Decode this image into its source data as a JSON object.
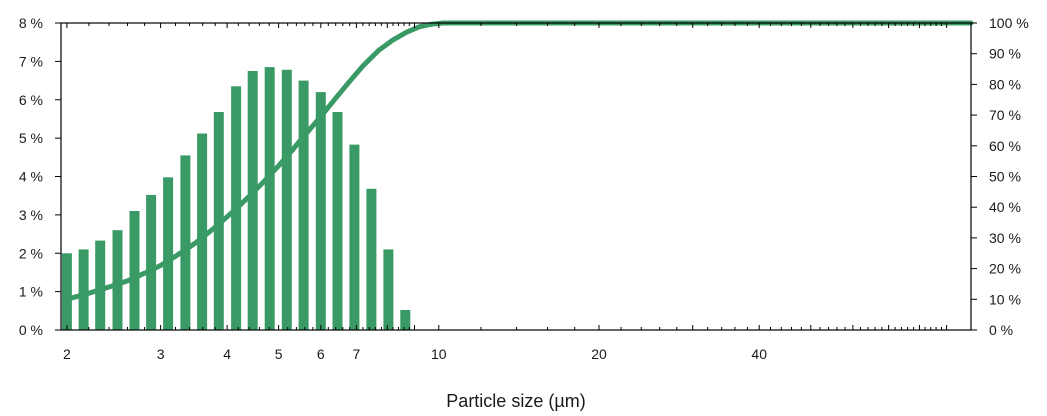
{
  "chart_data": {
    "type": "bar",
    "title": "",
    "xlabel": "Particle size (µm)",
    "ylabel_left": "",
    "ylabel_right": "",
    "x_scale": "log",
    "xlim": [
      1.95,
      100
    ],
    "y_left_lim": [
      0,
      8
    ],
    "y_right_lim": [
      0,
      100
    ],
    "x_tick_labels": [
      {
        "value": 2,
        "label": "2"
      },
      {
        "value": 3,
        "label": "3"
      },
      {
        "value": 4,
        "label": "4"
      },
      {
        "value": 5,
        "label": "5"
      },
      {
        "value": 6,
        "label": "6"
      },
      {
        "value": 7,
        "label": "7"
      },
      {
        "value": 10,
        "label": "10"
      },
      {
        "value": 20,
        "label": "20"
      },
      {
        "value": 40,
        "label": "40"
      }
    ],
    "y_left_ticks": [
      "0 %",
      "1 %",
      "2 %",
      "3 %",
      "4 %",
      "5 %",
      "6 %",
      "7 %",
      "8 %"
    ],
    "y_right_ticks": [
      "0 %",
      "10 %",
      "20 %",
      "30 %",
      "40 %",
      "50 %",
      "60 %",
      "70 %",
      "80 %",
      "90 %",
      "100 %"
    ],
    "grid": false,
    "color": "#3a9a66",
    "series": [
      {
        "type": "bar",
        "axis": "left",
        "x": [
          2.0,
          2.15,
          2.31,
          2.49,
          2.68,
          2.88,
          3.1,
          3.34,
          3.59,
          3.86,
          4.16,
          4.47,
          4.81,
          5.18,
          5.57,
          6.0,
          6.45,
          6.94,
          7.47,
          8.04,
          8.65,
          9.31,
          10.0
        ],
        "values": [
          2.0,
          2.1,
          2.33,
          2.6,
          3.1,
          3.52,
          3.98,
          4.55,
          5.12,
          5.68,
          6.35,
          6.75,
          6.85,
          6.78,
          6.5,
          6.2,
          5.68,
          4.83,
          3.68,
          2.1,
          0.52,
          0.0,
          0.0
        ]
      },
      {
        "type": "line",
        "axis": "right",
        "x": [
          2.0,
          2.2,
          2.4,
          2.6,
          2.8,
          3.0,
          3.2,
          3.5,
          3.8,
          4.1,
          4.4,
          4.7,
          5.0,
          5.3,
          5.6,
          6.0,
          6.4,
          6.8,
          7.2,
          7.7,
          8.2,
          8.7,
          9.2,
          9.7,
          10.2,
          10.5,
          11,
          15,
          30,
          60,
          100
        ],
        "values": [
          10,
          12,
          14,
          16,
          18.5,
          21,
          24,
          28.5,
          33.5,
          38.5,
          43.5,
          48.5,
          53.5,
          58.5,
          63.5,
          69.5,
          75.5,
          81,
          86,
          91,
          94.5,
          97,
          98.8,
          99.6,
          100,
          100,
          100,
          100,
          100,
          100,
          100
        ]
      }
    ]
  }
}
